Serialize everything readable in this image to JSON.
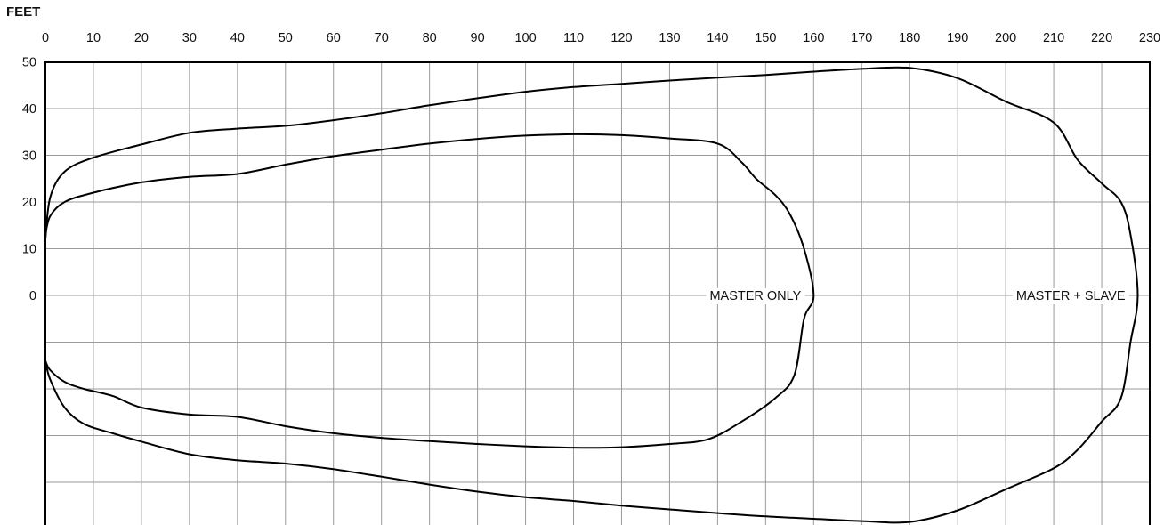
{
  "chart_data": {
    "type": "line",
    "unit_label": "FEET",
    "x_ticks": [
      0,
      10,
      20,
      30,
      40,
      50,
      60,
      70,
      80,
      90,
      100,
      110,
      120,
      130,
      140,
      150,
      160,
      170,
      180,
      190,
      200,
      210,
      220,
      230
    ],
    "y_ticks": [
      50,
      40,
      30,
      20,
      10,
      0
    ],
    "xlim": [
      0,
      230
    ],
    "ylim": [
      -50,
      50
    ],
    "grid": true,
    "series": [
      {
        "name": "MASTER ONLY",
        "points": [
          [
            0,
            -14
          ],
          [
            1,
            -16
          ],
          [
            4,
            -18.5
          ],
          [
            8,
            -20
          ],
          [
            14,
            -21.5
          ],
          [
            20,
            -24
          ],
          [
            30,
            -25.5
          ],
          [
            40,
            -26
          ],
          [
            50,
            -28
          ],
          [
            60,
            -29.5
          ],
          [
            70,
            -30.5
          ],
          [
            80,
            -31.2
          ],
          [
            90,
            -31.8
          ],
          [
            100,
            -32.3
          ],
          [
            110,
            -32.6
          ],
          [
            120,
            -32.5
          ],
          [
            130,
            -31.8
          ],
          [
            138,
            -30.8
          ],
          [
            145,
            -27
          ],
          [
            152,
            -22
          ],
          [
            156,
            -17
          ],
          [
            158,
            -5
          ],
          [
            160,
            0
          ],
          [
            158,
            10
          ],
          [
            155,
            17.5
          ],
          [
            152,
            21.5
          ],
          [
            148,
            25
          ],
          [
            145,
            28.5
          ],
          [
            140,
            32.5
          ],
          [
            130,
            33.6
          ],
          [
            120,
            34.3
          ],
          [
            110,
            34.5
          ],
          [
            100,
            34.2
          ],
          [
            90,
            33.5
          ],
          [
            80,
            32.5
          ],
          [
            70,
            31.2
          ],
          [
            60,
            29.8
          ],
          [
            50,
            28
          ],
          [
            40,
            26
          ],
          [
            30,
            25.4
          ],
          [
            20,
            24.2
          ],
          [
            10,
            22
          ],
          [
            4,
            20
          ],
          [
            1,
            17
          ],
          [
            0,
            13
          ]
        ]
      },
      {
        "name": "MASTER + SLAVE",
        "points": [
          [
            0,
            -14
          ],
          [
            1,
            -18
          ],
          [
            4,
            -24
          ],
          [
            8,
            -27.5
          ],
          [
            14,
            -29.5
          ],
          [
            20,
            -31.3
          ],
          [
            30,
            -34
          ],
          [
            40,
            -35.3
          ],
          [
            50,
            -36
          ],
          [
            60,
            -37.2
          ],
          [
            70,
            -38.8
          ],
          [
            80,
            -40.5
          ],
          [
            90,
            -42
          ],
          [
            100,
            -43.2
          ],
          [
            110,
            -44
          ],
          [
            120,
            -45
          ],
          [
            130,
            -45.8
          ],
          [
            140,
            -46.6
          ],
          [
            150,
            -47.3
          ],
          [
            160,
            -47.8
          ],
          [
            170,
            -48.3
          ],
          [
            180,
            -48.5
          ],
          [
            190,
            -46
          ],
          [
            200,
            -41.5
          ],
          [
            210,
            -37
          ],
          [
            215,
            -33
          ],
          [
            220,
            -27
          ],
          [
            224,
            -22
          ],
          [
            226,
            -10
          ],
          [
            227.5,
            0
          ],
          [
            226,
            13
          ],
          [
            224,
            20
          ],
          [
            220,
            24
          ],
          [
            215,
            29
          ],
          [
            210,
            37
          ],
          [
            200,
            41.5
          ],
          [
            190,
            46.5
          ],
          [
            180,
            48.7
          ],
          [
            170,
            48.5
          ],
          [
            160,
            47.9
          ],
          [
            150,
            47.2
          ],
          [
            140,
            46.6
          ],
          [
            130,
            46
          ],
          [
            120,
            45.3
          ],
          [
            110,
            44.6
          ],
          [
            100,
            43.6
          ],
          [
            90,
            42.2
          ],
          [
            80,
            40.7
          ],
          [
            70,
            39
          ],
          [
            60,
            37.5
          ],
          [
            50,
            36.3
          ],
          [
            40,
            35.7
          ],
          [
            30,
            34.8
          ],
          [
            20,
            32.3
          ],
          [
            10,
            29.5
          ],
          [
            4,
            26.5
          ],
          [
            1,
            21
          ],
          [
            0,
            12
          ]
        ]
      }
    ],
    "labels": [
      {
        "text": "MASTER ONLY",
        "x": 160,
        "y": 0,
        "anchor": "end"
      },
      {
        "text": "MASTER + SLAVE",
        "x": 227.5,
        "y": 0,
        "anchor": "end"
      }
    ]
  }
}
